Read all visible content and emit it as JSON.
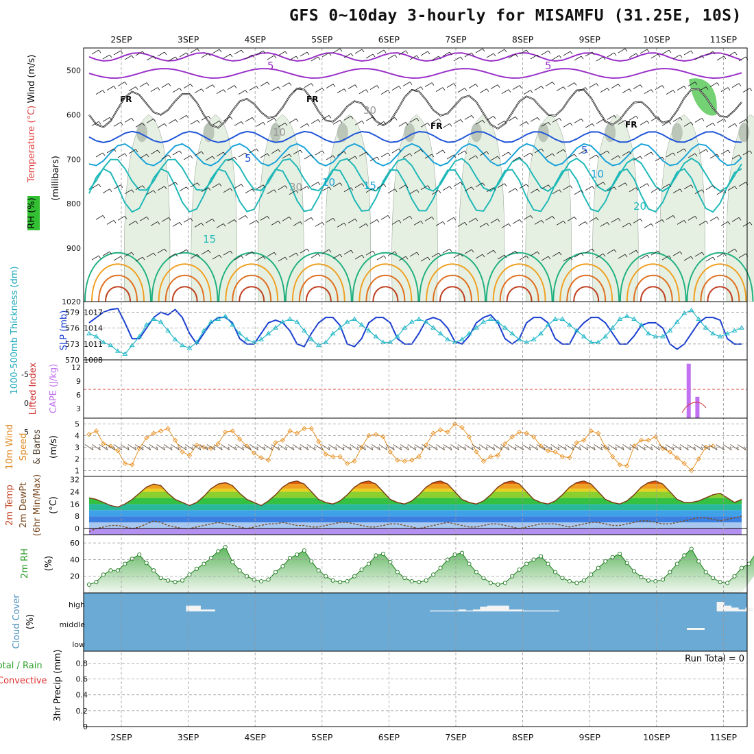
{
  "title": "GFS 0~10day 3-hourly for MISAMFU (31.25E, 10S)",
  "dates": [
    "2SEP",
    "3SEP",
    "4SEP",
    "5SEP",
    "6SEP",
    "7SEP",
    "8SEP",
    "9SEP",
    "10SEP",
    "11SEP"
  ],
  "panels": {
    "upper": {
      "label_wind": "Wind (m/s)",
      "label_temp": "Temperature (°C)",
      "label_rh": "RH (%)",
      "label_unit": "(millibars)",
      "yticks": [
        "500",
        "600",
        "700",
        "800",
        "900",
        "1020"
      ],
      "contour_labels": [
        "5",
        "5",
        "FR",
        "FR",
        "FR",
        "FR",
        "30",
        "10",
        "5",
        "5",
        "30",
        "10",
        "15",
        "10",
        "20",
        "15"
      ]
    },
    "slp": {
      "label_left": "1000-500mb Thickness (dm)",
      "label_right": "SLP (mb)",
      "ticks_left": [
        "579",
        "576",
        "573",
        "570"
      ],
      "ticks_right": [
        "1017",
        "1014",
        "1011",
        "1008"
      ]
    },
    "cape": {
      "label_left": "Lifted Index",
      "label_right": "CAPE (J/kg)",
      "ticks_left": [
        "-5",
        "0",
        "5"
      ],
      "ticks_right": [
        "12",
        "9",
        "6",
        "3"
      ]
    },
    "wind10": {
      "label_1": "10m Wind",
      "label_2": "Speed",
      "label_3": "& Barbs",
      "unit": "(m/s)",
      "ticks": [
        "5",
        "4",
        "3",
        "2",
        "1"
      ]
    },
    "temp": {
      "label_1": "2m Temp",
      "label_2": "2m DewPt",
      "label_3": "(6hr Min/Max)",
      "unit": "(°C)",
      "ticks": [
        "32",
        "24",
        "16",
        "8",
        "0"
      ]
    },
    "rh": {
      "label": "2m RH",
      "unit": "(%)",
      "ticks": [
        "60",
        "40",
        "20"
      ]
    },
    "cloud": {
      "label": "Cloud Cover",
      "unit": "(%)",
      "levels": [
        "high",
        "middle",
        "low"
      ]
    },
    "precip": {
      "label_1": "Total / Rain",
      "label_2": "Convective",
      "label_3": "3hr Precip (mm)",
      "run_total": "Run Total = 0",
      "ticks": [
        "0.8",
        "0.6",
        "0.4",
        "0.2",
        "0"
      ]
    }
  },
  "chart_data": {
    "type": "line",
    "x_unit": "3-hourly steps from 1SEP 18Z",
    "slp_mb": [
      1015,
      1016,
      1017,
      1017.5,
      1017.7,
      1015,
      1012,
      1012,
      1014,
      1016,
      1017,
      1016.5,
      1017.5,
      1016,
      1013,
      1011,
      1013,
      1015,
      1016,
      1016,
      1015,
      1012,
      1011,
      1011,
      1013,
      1015,
      1015.5,
      1015,
      1013.5,
      1011,
      1010.5,
      1013,
      1015,
      1016,
      1016,
      1014.5,
      1011,
      1010.5,
      1012,
      1015,
      1016,
      1016,
      1015,
      1012,
      1011,
      1011,
      1013,
      1015.5,
      1016,
      1015.5,
      1014,
      1011.5,
      1011,
      1012.5,
      1015,
      1016,
      1016.5,
      1015,
      1012,
      1011,
      1012,
      1015,
      1016,
      1016,
      1015,
      1012,
      1011,
      1011,
      1013.5,
      1015,
      1016,
      1016,
      1015,
      1013,
      1011,
      1011,
      1012.5,
      1014.5,
      1015,
      1015,
      1014,
      1011,
      1010,
      1011,
      1013,
      1015,
      1016,
      1016,
      1015.5,
      1012,
      1011,
      1011
    ],
    "thick_dm": [
      574.5,
      574,
      573,
      572.5,
      571.5,
      571,
      572.5,
      574,
      576,
      577,
      576.5,
      575,
      573.5,
      572.5,
      572,
      573,
      575,
      576.5,
      577,
      577.5,
      576,
      574.5,
      573.5,
      573,
      573.5,
      574.5,
      575.5,
      576.5,
      577,
      576.5,
      575,
      573.5,
      572.5,
      573,
      574.5,
      575.5,
      576.5,
      577,
      576,
      575,
      574,
      573,
      573,
      574,
      575.5,
      576.5,
      577,
      576.5,
      575.5,
      574.5,
      573.5,
      573,
      573.5,
      574.5,
      575.5,
      576.5,
      577,
      576.5,
      575.5,
      574.5,
      573.5,
      573,
      573.5,
      574.5,
      576,
      577,
      577,
      576,
      575,
      574,
      573,
      573,
      574,
      575.5,
      577,
      577.5,
      577,
      576,
      574.5,
      574,
      574,
      575,
      576.5,
      578,
      578.5,
      577,
      575.5,
      574.5,
      574,
      574.5,
      575,
      575.5
    ],
    "cape_jkg": {
      "bars": [
        {
          "day_offset": 8.45,
          "value": 14
        },
        {
          "day_offset": 8.58,
          "value": 5.5
        }
      ]
    },
    "wind10_ms": [
      4.1,
      4.4,
      3.3,
      3.1,
      2.7,
      1.6,
      1.5,
      2.9,
      3.8,
      4.2,
      4.4,
      4.6,
      3.6,
      2.6,
      2.3,
      3.2,
      3.0,
      2.9,
      3.3,
      4.3,
      4.4,
      3.7,
      3.1,
      2.5,
      2.1,
      1.9,
      3.4,
      3.6,
      4.4,
      4.2,
      4.6,
      4.6,
      3.5,
      2.4,
      2.2,
      2.2,
      1.6,
      1.8,
      3.0,
      4.0,
      4.1,
      3.9,
      2.6,
      1.9,
      1.8,
      1.9,
      2.2,
      3.2,
      4.2,
      4.5,
      4.3,
      5.0,
      4.7,
      3.9,
      2.6,
      1.8,
      2.2,
      2.3,
      3.3,
      3.9,
      4.3,
      4.2,
      3.9,
      3.1,
      2.7,
      2.6,
      2.2,
      2.1,
      3.4,
      3.6,
      4.4,
      4.2,
      3.0,
      2.2,
      1.5,
      1.4,
      3.1,
      3.6,
      3.6,
      3.9,
      2.9,
      2.6,
      2.1,
      1.6,
      1.0,
      2.0,
      3.0,
      3.1
    ],
    "temp_c": [
      20,
      19,
      17,
      15,
      14,
      16,
      19,
      23,
      27,
      29,
      28,
      23,
      19,
      17,
      15,
      17,
      21,
      26,
      29,
      30,
      28,
      23,
      19,
      17,
      15,
      18,
      22,
      27,
      30,
      31,
      29,
      24,
      19,
      17,
      16,
      18,
      22,
      27,
      30,
      31,
      29,
      24,
      19,
      17,
      16,
      18,
      22,
      27,
      30,
      31,
      29,
      24,
      19,
      17,
      16,
      18,
      22,
      27,
      30,
      31,
      29,
      24,
      19,
      17,
      16,
      18,
      22,
      27,
      30,
      31,
      29,
      24,
      19,
      17,
      16,
      18,
      22,
      27,
      30,
      31,
      29,
      24,
      19,
      17,
      17,
      18,
      20,
      22,
      23,
      20,
      17,
      19
    ],
    "dewpt_c": [
      -2,
      0,
      1,
      2,
      2,
      1,
      0,
      1,
      3,
      5,
      4,
      2,
      1,
      0,
      0,
      1,
      2,
      3,
      4,
      3,
      2,
      1,
      0,
      1,
      2,
      3,
      3,
      4,
      3,
      2,
      2,
      1,
      1,
      2,
      3,
      4,
      4,
      3,
      2,
      1,
      1,
      2,
      3,
      3,
      2,
      1,
      0,
      1,
      2,
      3,
      4,
      3,
      2,
      1,
      1,
      2,
      3,
      3,
      2,
      1,
      0,
      1,
      2,
      3,
      3,
      3,
      2,
      1,
      2,
      3,
      4,
      4,
      3,
      2,
      2,
      3,
      4,
      5,
      5,
      4,
      3,
      3,
      4,
      5,
      6,
      7,
      7,
      6,
      5,
      6,
      7,
      8
    ],
    "rh_pct": [
      10,
      13,
      22,
      27,
      27,
      35,
      41,
      46,
      36,
      27,
      18,
      15,
      13,
      15,
      22,
      29,
      35,
      42,
      50,
      55,
      37,
      27,
      20,
      16,
      14,
      16,
      25,
      32,
      42,
      46,
      51,
      38,
      27,
      20,
      15,
      13,
      14,
      20,
      28,
      35,
      45,
      47,
      37,
      25,
      18,
      14,
      13,
      15,
      22,
      30,
      40,
      46,
      48,
      35,
      25,
      18,
      12,
      10,
      12,
      20,
      28,
      35,
      40,
      44,
      35,
      25,
      18,
      14,
      12,
      15,
      22,
      30,
      38,
      43,
      47,
      36,
      26,
      19,
      15,
      14,
      16,
      25,
      35,
      45,
      53,
      38,
      25,
      18,
      13,
      12,
      20,
      30,
      35,
      48,
      62,
      47
    ],
    "cloud_high_pct": [
      0,
      0,
      0,
      0,
      0,
      0,
      0,
      0,
      0,
      0,
      0,
      0,
      0,
      0,
      30,
      30,
      10,
      10,
      0,
      0,
      0,
      0,
      0,
      0,
      0,
      0,
      0,
      0,
      0,
      0,
      0,
      0,
      0,
      0,
      0,
      0,
      0,
      0,
      0,
      0,
      0,
      0,
      0,
      0,
      0,
      0,
      0,
      0,
      5,
      5,
      5,
      5,
      10,
      5,
      10,
      25,
      30,
      30,
      30,
      10,
      10,
      5,
      5,
      5,
      5,
      5,
      0,
      0,
      0,
      0,
      0,
      0,
      0,
      0,
      0,
      0,
      0,
      0,
      0,
      0,
      0,
      0,
      0,
      0,
      0,
      0,
      0,
      0,
      50,
      30,
      20,
      10,
      20,
      0,
      30,
      30
    ],
    "precip_mm": 0
  }
}
